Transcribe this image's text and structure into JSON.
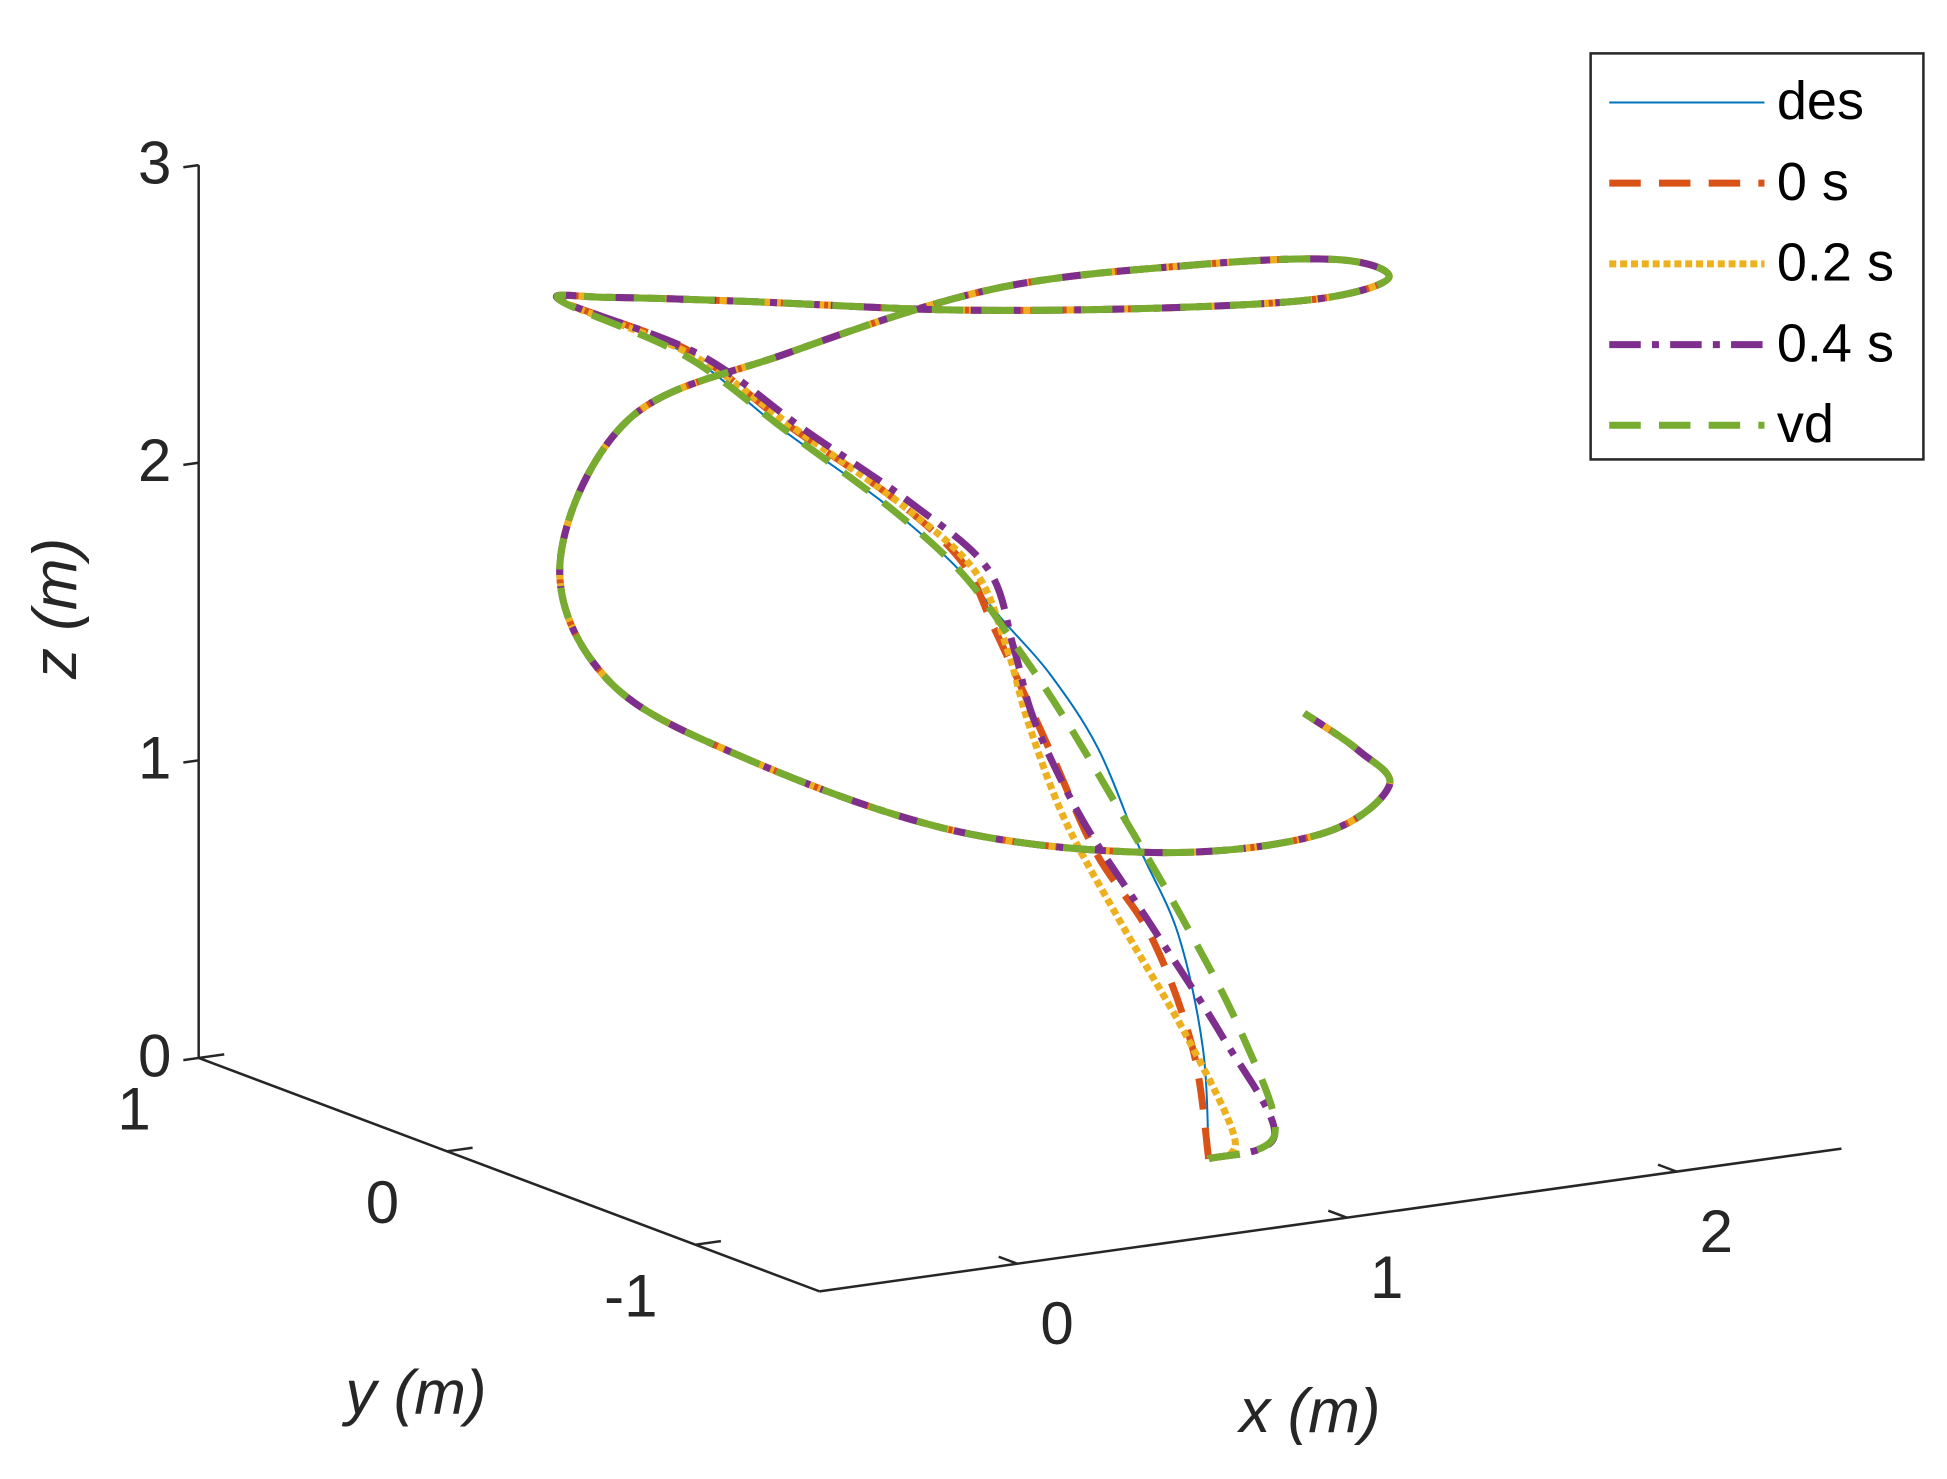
{
  "chart_data": {
    "type": "line3d",
    "xlabel": "x (m)",
    "ylabel": "y (m)",
    "zlabel": "z (m)",
    "xlim": [
      -0.6,
      2.5
    ],
    "ylim": [
      -1.5,
      1
    ],
    "zlim": [
      0,
      3
    ],
    "xticks": [
      0,
      1,
      2
    ],
    "yticks": [
      -1,
      0,
      1
    ],
    "zticks": [
      0,
      1,
      2,
      3
    ],
    "legend": "northeast",
    "series": [
      {
        "name": "des",
        "color": "#0072BD",
        "line_style": "solid",
        "line_width": 2,
        "x": [
          1.04,
          1.03,
          1.0,
          0.95,
          0.9,
          0.84,
          0.78,
          0.71,
          0.62,
          0.49,
          0.37,
          0.21,
          0.02,
          0.06,
          0.36,
          0.83,
          1.34,
          1.79,
          1.98,
          1.94,
          1.64,
          1.17,
          0.66,
          0.21,
          0.02,
          0.06,
          0.36,
          0.83,
          1.34,
          1.79,
          1.97,
          2.0
        ],
        "y": [
          -0.89,
          -0.88,
          -0.82,
          -0.73,
          -0.63,
          -0.52,
          -0.42,
          -0.29,
          -0.12,
          0.11,
          0.34,
          0.62,
          0.17,
          -0.34,
          -0.77,
          -0.98,
          -0.94,
          -0.62,
          -0.17,
          0.34,
          0.77,
          0.98,
          0.94,
          0.62,
          0.17,
          -0.34,
          -0.77,
          -0.98,
          -0.94,
          -0.62,
          -0.26,
          0.0
        ],
        "z": [
          0.0,
          0.37,
          0.74,
          1.01,
          1.32,
          1.54,
          1.69,
          1.87,
          2.04,
          2.23,
          2.43,
          2.54,
          2.72,
          2.86,
          2.92,
          2.92,
          2.86,
          2.76,
          2.65,
          2.48,
          2.31,
          2.1,
          1.97,
          1.66,
          1.43,
          1.32,
          1.17,
          1.09,
          1.06,
          1.05,
          1.03,
          1.07
        ]
      },
      {
        "name": "0 s",
        "color": "#D95319",
        "line_style": "dashed",
        "line_width": 7,
        "x": [
          1.04,
          1.0,
          0.92,
          0.82,
          0.76,
          0.74,
          0.74,
          0.74,
          0.66,
          0.52,
          0.39,
          0.21,
          0.02,
          0.06,
          0.36,
          0.83,
          1.34,
          1.79,
          1.98,
          1.94,
          1.64,
          1.17,
          0.66,
          0.21,
          0.02,
          0.06,
          0.36,
          0.83,
          1.34,
          1.79,
          1.97,
          2.0
        ],
        "y": [
          -0.89,
          -0.88,
          -0.82,
          -0.73,
          -0.63,
          -0.52,
          -0.42,
          -0.29,
          -0.12,
          0.11,
          0.34,
          0.62,
          0.17,
          -0.34,
          -0.77,
          -0.98,
          -0.94,
          -0.62,
          -0.17,
          0.34,
          0.77,
          0.98,
          0.94,
          0.62,
          0.17,
          -0.34,
          -0.77,
          -0.98,
          -0.94,
          -0.62,
          -0.26,
          0.0
        ],
        "z": [
          0.0,
          0.37,
          0.74,
          1.01,
          1.32,
          1.54,
          1.69,
          1.87,
          2.04,
          2.23,
          2.43,
          2.54,
          2.72,
          2.86,
          2.92,
          2.92,
          2.86,
          2.76,
          2.65,
          2.48,
          2.31,
          2.1,
          1.97,
          1.66,
          1.43,
          1.32,
          1.17,
          1.09,
          1.06,
          1.05,
          1.03,
          1.07
        ]
      },
      {
        "name": "0.2 s",
        "color": "#EDB120",
        "line_style": "dotted",
        "line_width": 7,
        "x": [
          1.04,
          1.12,
          1.0,
          0.86,
          0.78,
          0.75,
          0.76,
          0.76,
          0.67,
          0.53,
          0.39,
          0.21,
          0.02,
          0.06,
          0.36,
          0.83,
          1.34,
          1.79,
          1.98,
          1.94,
          1.64,
          1.17,
          0.66,
          0.21,
          0.02,
          0.06,
          0.36,
          0.83,
          1.34,
          1.79,
          1.97,
          2.0
        ],
        "y": [
          -0.89,
          -0.89,
          -0.86,
          -0.78,
          -0.66,
          -0.55,
          -0.45,
          -0.32,
          -0.15,
          0.09,
          0.33,
          0.62,
          0.17,
          -0.34,
          -0.77,
          -0.98,
          -0.94,
          -0.62,
          -0.17,
          0.34,
          0.77,
          0.98,
          0.94,
          0.62,
          0.17,
          -0.34,
          -0.77,
          -0.98,
          -0.94,
          -0.62,
          -0.26,
          0.0
        ],
        "z": [
          0.0,
          0.05,
          0.4,
          0.78,
          1.1,
          1.4,
          1.62,
          1.84,
          2.02,
          2.22,
          2.42,
          2.54,
          2.72,
          2.86,
          2.92,
          2.92,
          2.86,
          2.76,
          2.65,
          2.48,
          2.31,
          2.1,
          1.97,
          1.66,
          1.43,
          1.32,
          1.17,
          1.09,
          1.06,
          1.05,
          1.03,
          1.07
        ]
      },
      {
        "name": "0.4 s",
        "color": "#7E2F8E",
        "line_style": "dashdot",
        "line_width": 7,
        "x": [
          1.04,
          1.24,
          1.1,
          0.94,
          0.83,
          0.77,
          0.78,
          0.8,
          0.7,
          0.55,
          0.41,
          0.21,
          0.02,
          0.06,
          0.36,
          0.83,
          1.34,
          1.79,
          1.98,
          1.94,
          1.64,
          1.17,
          0.66,
          0.21,
          0.02,
          0.06,
          0.36,
          0.83,
          1.34,
          1.79,
          1.97,
          2.0
        ],
        "y": [
          -0.89,
          -0.89,
          -0.86,
          -0.78,
          -0.66,
          -0.55,
          -0.45,
          -0.32,
          -0.15,
          0.09,
          0.33,
          0.62,
          0.17,
          -0.34,
          -0.77,
          -0.98,
          -0.94,
          -0.62,
          -0.17,
          0.34,
          0.77,
          0.98,
          0.94,
          0.62,
          0.17,
          -0.34,
          -0.77,
          -0.98,
          -0.94,
          -0.62,
          -0.26,
          0.0
        ],
        "z": [
          0.0,
          0.05,
          0.4,
          0.78,
          1.1,
          1.4,
          1.62,
          1.84,
          2.02,
          2.22,
          2.42,
          2.54,
          2.72,
          2.86,
          2.92,
          2.92,
          2.86,
          2.76,
          2.65,
          2.48,
          2.31,
          2.1,
          1.97,
          1.66,
          1.43,
          1.32,
          1.17,
          1.09,
          1.06,
          1.05,
          1.03,
          1.07
        ]
      },
      {
        "name": "vd",
        "color": "#77AC30",
        "line_style": "dashed",
        "line_width": 7,
        "x": [
          1.04,
          1.24,
          1.16,
          1.04,
          0.95,
          0.86,
          0.79,
          0.72,
          0.63,
          0.5,
          0.37,
          0.21,
          0.02,
          0.06,
          0.36,
          0.83,
          1.34,
          1.79,
          1.98,
          1.94,
          1.64,
          1.17,
          0.66,
          0.21,
          0.02,
          0.06,
          0.36,
          0.83,
          1.34,
          1.79,
          1.97,
          2.0
        ],
        "y": [
          -0.89,
          -0.89,
          -0.86,
          -0.78,
          -0.66,
          -0.55,
          -0.45,
          -0.32,
          -0.15,
          0.09,
          0.33,
          0.62,
          0.17,
          -0.34,
          -0.77,
          -0.98,
          -0.94,
          -0.62,
          -0.17,
          0.34,
          0.77,
          0.98,
          0.94,
          0.62,
          0.17,
          -0.34,
          -0.77,
          -0.98,
          -0.94,
          -0.62,
          -0.26,
          0.0
        ],
        "z": [
          0.0,
          0.05,
          0.4,
          0.78,
          1.1,
          1.4,
          1.62,
          1.84,
          2.02,
          2.22,
          2.42,
          2.54,
          2.72,
          2.86,
          2.92,
          2.92,
          2.86,
          2.76,
          2.65,
          2.48,
          2.31,
          2.1,
          1.97,
          1.66,
          1.43,
          1.32,
          1.17,
          1.09,
          1.06,
          1.05,
          1.03,
          1.07
        ]
      }
    ]
  }
}
